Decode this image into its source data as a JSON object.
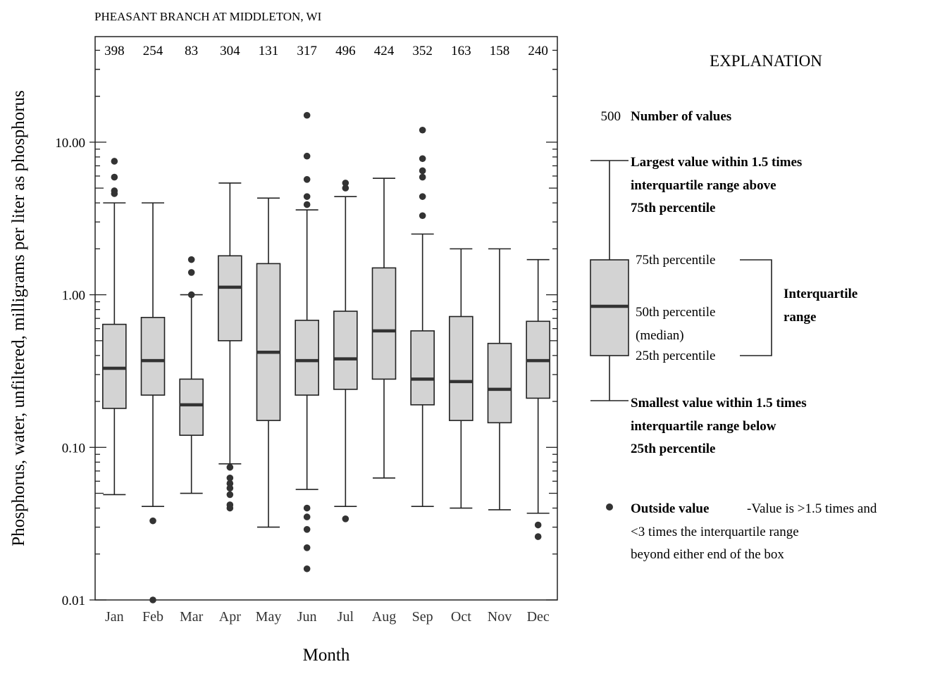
{
  "chart_data": {
    "type": "box",
    "title": "PHEASANT BRANCH AT MIDDLETON, WI",
    "xlabel": "Month",
    "ylabel": "Phosphorus, water, unfiltered, milligrams per liter as phosphorus",
    "yscale": "log",
    "ylim": [
      0.01,
      30
    ],
    "yticks": [
      "0.01",
      "0.10",
      "1.00",
      "10.00"
    ],
    "categories": [
      "Jan",
      "Feb",
      "Mar",
      "Apr",
      "May",
      "Jun",
      "Jul",
      "Aug",
      "Sep",
      "Oct",
      "Nov",
      "Dec"
    ],
    "counts": [
      "398",
      "254",
      "83",
      "304",
      "131",
      "317",
      "496",
      "424",
      "352",
      "163",
      "158",
      "240"
    ],
    "boxes": [
      {
        "month": "Jan",
        "whisker_low": 0.049,
        "q1": 0.18,
        "median": 0.33,
        "q3": 0.64,
        "whisker_high": 4.0,
        "outliers": [
          4.6,
          4.8,
          5.9,
          7.5
        ]
      },
      {
        "month": "Feb",
        "whisker_low": 0.041,
        "q1": 0.22,
        "median": 0.37,
        "q3": 0.71,
        "whisker_high": 4.0,
        "outliers": [
          0.033,
          0.01
        ]
      },
      {
        "month": "Mar",
        "whisker_low": 0.05,
        "q1": 0.12,
        "median": 0.19,
        "q3": 0.28,
        "whisker_high": 1.0,
        "outliers": [
          1.0,
          1.4,
          1.7
        ]
      },
      {
        "month": "Apr",
        "whisker_low": 0.078,
        "q1": 0.5,
        "median": 1.12,
        "q3": 1.8,
        "whisker_high": 5.4,
        "outliers": [
          0.074,
          0.063,
          0.058,
          0.054,
          0.049,
          0.042,
          0.04
        ]
      },
      {
        "month": "May",
        "whisker_low": 0.03,
        "q1": 0.15,
        "median": 0.42,
        "q3": 1.6,
        "whisker_high": 4.3,
        "outliers": []
      },
      {
        "month": "Jun",
        "whisker_low": 0.053,
        "q1": 0.22,
        "median": 0.37,
        "q3": 0.68,
        "whisker_high": 3.6,
        "outliers": [
          0.04,
          0.035,
          0.029,
          0.022,
          0.016,
          3.9,
          4.4,
          5.7,
          8.1,
          15.0
        ]
      },
      {
        "month": "Jul",
        "whisker_low": 0.041,
        "q1": 0.24,
        "median": 0.38,
        "q3": 0.78,
        "whisker_high": 4.4,
        "outliers": [
          0.034,
          5.0,
          5.4
        ]
      },
      {
        "month": "Aug",
        "whisker_low": 0.063,
        "q1": 0.28,
        "median": 0.58,
        "q3": 1.5,
        "whisker_high": 5.8,
        "outliers": []
      },
      {
        "month": "Sep",
        "whisker_low": 0.041,
        "q1": 0.19,
        "median": 0.28,
        "q3": 0.58,
        "whisker_high": 2.5,
        "outliers": [
          3.3,
          4.4,
          5.9,
          6.5,
          7.8,
          12.0
        ]
      },
      {
        "month": "Oct",
        "whisker_low": 0.04,
        "q1": 0.15,
        "median": 0.27,
        "q3": 0.72,
        "whisker_high": 2.0,
        "outliers": []
      },
      {
        "month": "Nov",
        "whisker_low": 0.039,
        "q1": 0.145,
        "median": 0.24,
        "q3": 0.48,
        "whisker_high": 2.0,
        "outliers": []
      },
      {
        "month": "Dec",
        "whisker_low": 0.037,
        "q1": 0.21,
        "median": 0.37,
        "q3": 0.67,
        "whisker_high": 1.7,
        "outliers": [
          0.031,
          0.026
        ]
      }
    ],
    "colors": {
      "box_fill": "#d3d3d3",
      "line": "#222222",
      "median": "#333333",
      "outlier": "#333333",
      "text": "#000000"
    }
  },
  "explanation": {
    "heading": "EXPLANATION",
    "count_example": "500",
    "count_label": "Number of values",
    "upper_whisker_lines": [
      "Largest value within 1.5 times",
      "interquartile range above",
      "75th percentile"
    ],
    "p75": "75th percentile",
    "p50_lines": [
      "50th percentile",
      "(median)"
    ],
    "p25": "25th percentile",
    "iqr_lines": [
      "Interquartile",
      "range"
    ],
    "lower_whisker_lines": [
      "Smallest value within 1.5 times",
      "interquartile range below",
      "25th percentile"
    ],
    "outside_label": "Outside value",
    "outside_desc_lines": [
      "-Value is >1.5 times and",
      "<3 times the interquartile range",
      "beyond either end of the box"
    ]
  }
}
